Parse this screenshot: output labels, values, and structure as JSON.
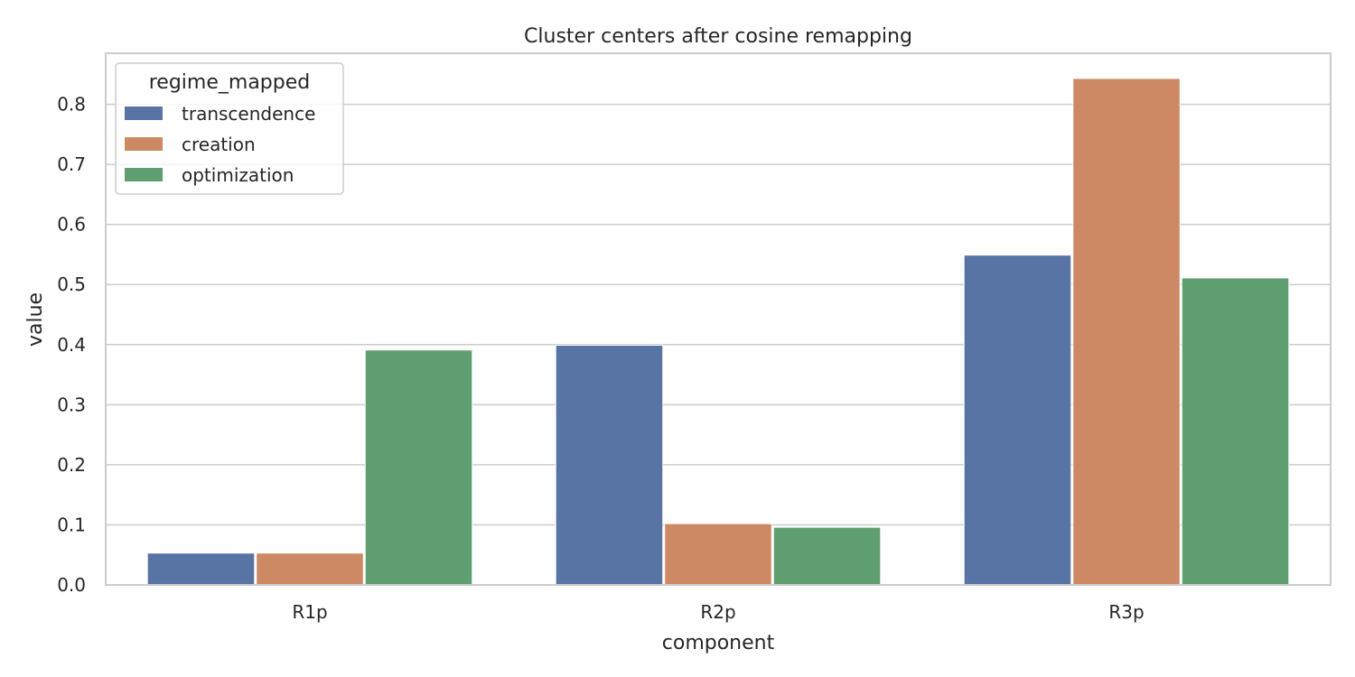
{
  "chart_data": {
    "type": "bar",
    "title": "Cluster centers after cosine remapping",
    "xlabel": "component",
    "ylabel": "value",
    "categories": [
      "R1p",
      "R2p",
      "R3p"
    ],
    "ylim": [
      0,
      0.885
    ],
    "yticks": [
      0.0,
      0.1,
      0.2,
      0.3,
      0.4,
      0.5,
      0.6,
      0.7,
      0.8
    ],
    "ytick_labels": [
      "0.0",
      "0.1",
      "0.2",
      "0.3",
      "0.4",
      "0.5",
      "0.6",
      "0.7",
      "0.8"
    ],
    "grid": true,
    "legend": {
      "title": "regime_mapped",
      "position": "top-left"
    },
    "series": [
      {
        "name": "transcendence",
        "color": "#5874a4",
        "values": [
          0.053,
          0.399,
          0.549
        ]
      },
      {
        "name": "creation",
        "color": "#cc8963",
        "values": [
          0.053,
          0.102,
          0.843
        ]
      },
      {
        "name": "optimization",
        "color": "#5f9e6e",
        "values": [
          0.391,
          0.096,
          0.511
        ]
      }
    ]
  }
}
